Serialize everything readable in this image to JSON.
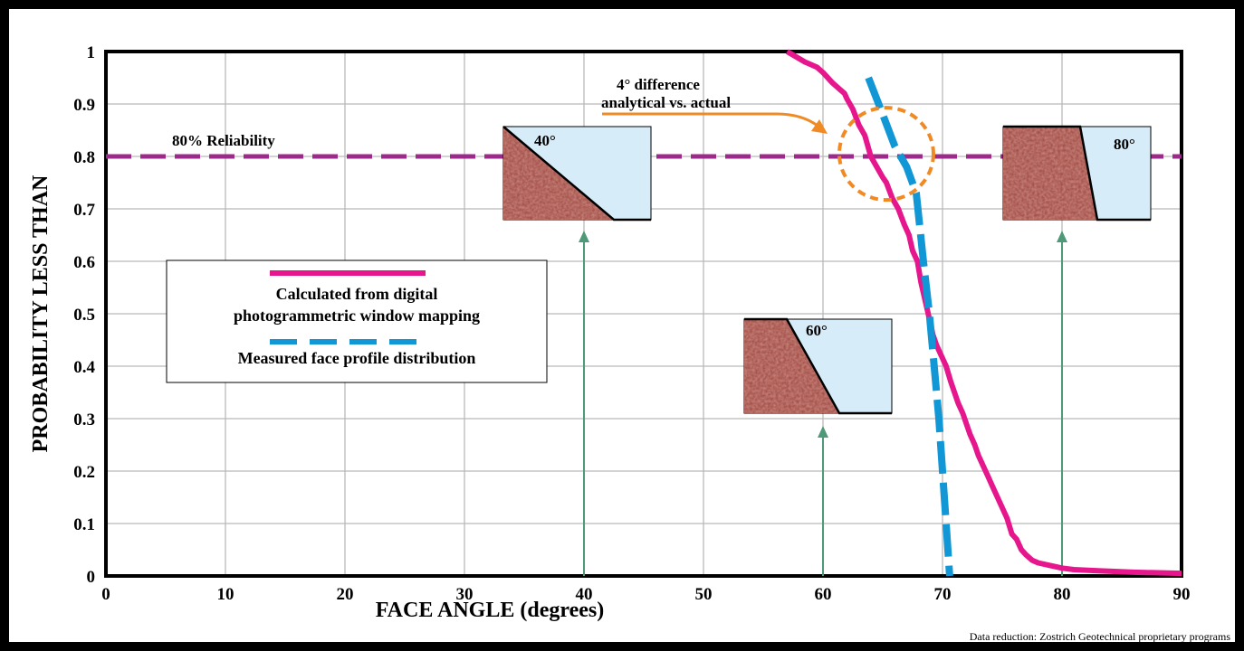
{
  "chart_data": {
    "type": "line",
    "xlabel": "FACE ANGLE (degrees)",
    "ylabel": "PROBABILITY LESS THAN",
    "xlim": [
      0,
      90
    ],
    "ylim": [
      0,
      1
    ],
    "x_ticks": [
      "0",
      "10",
      "20",
      "30",
      "40",
      "50",
      "60",
      "70",
      "80",
      "90"
    ],
    "y_ticks": [
      "0",
      "0.1",
      "0.2",
      "0.3",
      "0.4",
      "0.5",
      "0.6",
      "0.7",
      "0.8",
      "0.9",
      "1"
    ],
    "grid": true,
    "series": [
      {
        "name": "Calculated from digital photogrammetric window mapping",
        "color": "#e6168c",
        "style": "solid",
        "x": [
          57,
          58.5,
          59.5,
          60,
          60.8,
          61.3,
          61.8,
          62,
          62.5,
          63,
          63.5,
          64,
          64.5,
          65,
          65.3,
          65.8,
          66.3,
          66.8,
          67.2,
          67.5,
          67.9,
          68.2,
          68.5,
          68.8,
          69.2,
          69.5,
          69.9,
          70.3,
          70.7,
          71,
          71.3,
          71.7,
          72,
          72.3,
          72.7,
          73,
          73.4,
          73.8,
          74.2,
          74.6,
          75,
          75.4,
          75.8,
          76.2,
          76.6,
          77,
          77.5,
          78,
          79,
          80,
          81,
          83,
          86,
          90
        ],
        "y": [
          1,
          0.98,
          0.97,
          0.96,
          0.94,
          0.93,
          0.92,
          0.91,
          0.89,
          0.86,
          0.84,
          0.8,
          0.78,
          0.76,
          0.75,
          0.72,
          0.7,
          0.67,
          0.65,
          0.62,
          0.6,
          0.56,
          0.53,
          0.5,
          0.46,
          0.44,
          0.42,
          0.4,
          0.37,
          0.35,
          0.33,
          0.31,
          0.29,
          0.27,
          0.25,
          0.23,
          0.21,
          0.19,
          0.17,
          0.15,
          0.13,
          0.11,
          0.08,
          0.07,
          0.05,
          0.04,
          0.03,
          0.025,
          0.02,
          0.015,
          0.012,
          0.01,
          0.007,
          0.005
        ]
      },
      {
        "name": "Measured face profile distribution",
        "color": "#1196d6",
        "style": "dashed",
        "x": [
          63.8,
          65,
          66,
          67,
          67.8,
          68.4,
          68.9,
          69.3,
          69.7,
          70,
          70.3,
          70.6
        ],
        "y": [
          0.95,
          0.88,
          0.82,
          0.78,
          0.73,
          0.6,
          0.5,
          0.4,
          0.3,
          0.2,
          0.1,
          0
        ]
      }
    ],
    "reference_line": {
      "y": 0.8,
      "label": "80% Reliability",
      "color": "#9b2a8a"
    }
  },
  "annotation": {
    "line1": "4° difference",
    "line2": "analytical vs. actual",
    "color": "#f08a24"
  },
  "legend": {
    "item1_line1": "Calculated from digital",
    "item1_line2": "photogrammetric window mapping",
    "item2": "Measured face profile distribution"
  },
  "insets": [
    {
      "id": "inset-40",
      "label": "40°",
      "angle": 40
    },
    {
      "id": "inset-60",
      "label": "60°",
      "angle": 60
    },
    {
      "id": "inset-80",
      "label": "80°",
      "angle": 80
    }
  ],
  "colors": {
    "arrow": "#4e9a78",
    "rock": "#a04a42",
    "sky": "#d6ecf8",
    "grid": "#b9b9b9"
  },
  "credit": "Data reduction: Zostrich Geotechnical proprietary programs"
}
